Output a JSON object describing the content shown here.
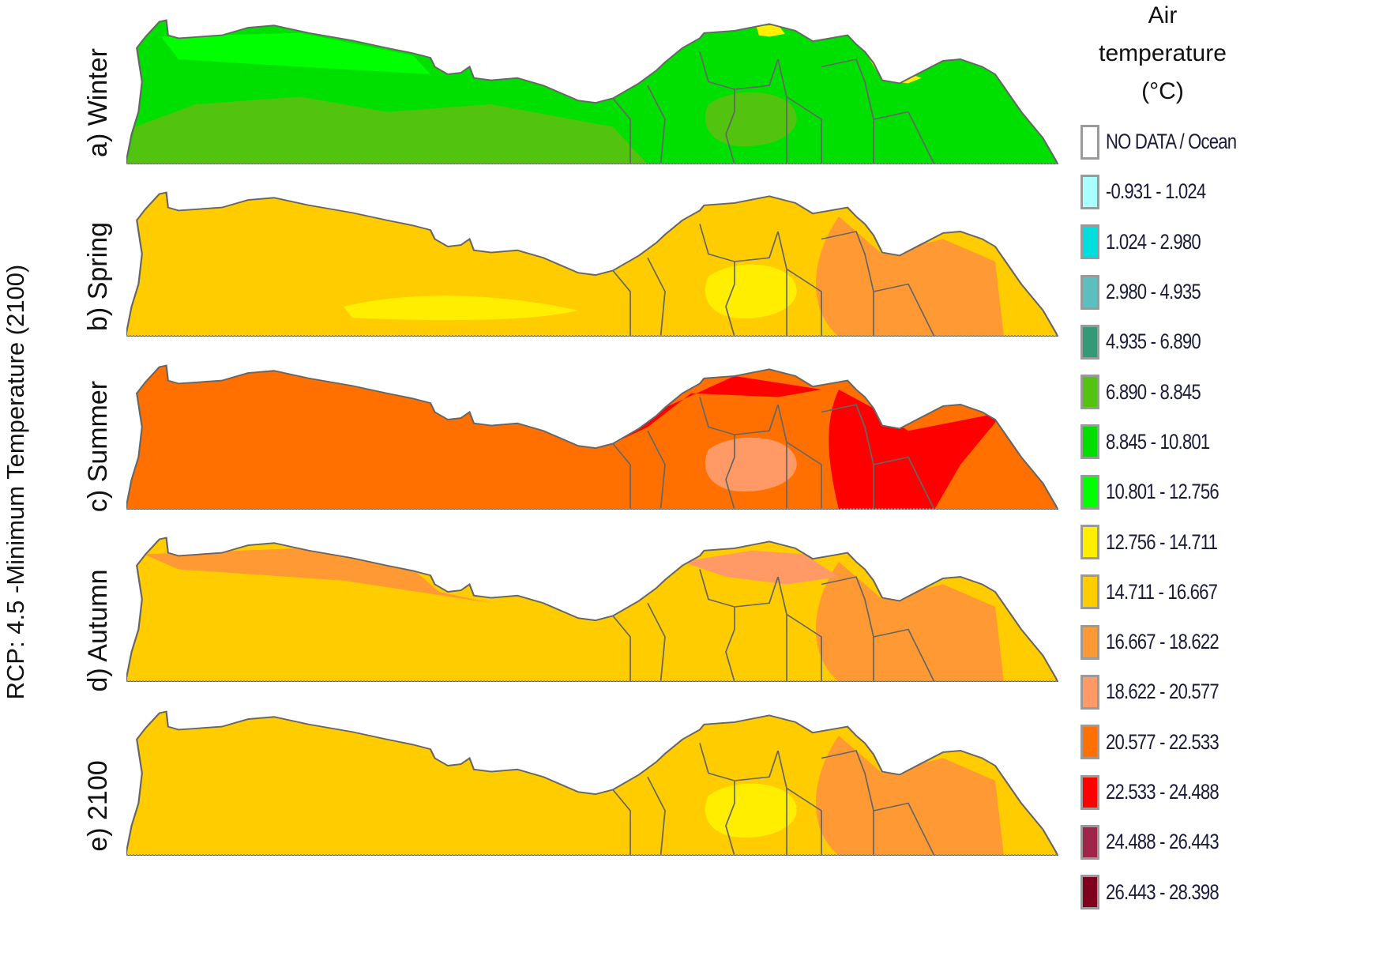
{
  "figure": {
    "main_title": "RCP: 4.5 -Minimum Temperature (2100)",
    "panels": [
      {
        "label": "a) Winter",
        "base_color": "#00e000",
        "zones": [
          {
            "color": "#52c410",
            "shape": "southwest"
          },
          {
            "color": "#00ff00",
            "shape": "northcoast"
          },
          {
            "color": "#52c410",
            "shape": "center"
          },
          {
            "color": "#ffee00",
            "shape": "delta-east"
          },
          {
            "color": "#ffee00",
            "shape": "delta-north"
          }
        ]
      },
      {
        "label": "b) Spring",
        "base_color": "#ffcc00",
        "zones": [
          {
            "color": "#ffee00",
            "shape": "southwest-streak"
          },
          {
            "color": "#ffee00",
            "shape": "center"
          },
          {
            "color": "#ff9933",
            "shape": "east"
          }
        ]
      },
      {
        "label": "c) Summer",
        "base_color": "#ff7000",
        "zones": [
          {
            "color": "#ff0000",
            "shape": "northcoast-center"
          },
          {
            "color": "#ff0000",
            "shape": "east-block"
          },
          {
            "color": "#ff9966",
            "shape": "center"
          },
          {
            "color": "#a0254a",
            "shape": "dot"
          }
        ]
      },
      {
        "label": "d) Autumn",
        "base_color": "#ffcc00",
        "zones": [
          {
            "color": "#ff9933",
            "shape": "northwest-coast"
          },
          {
            "color": "#ff9933",
            "shape": "east"
          },
          {
            "color": "#ff9966",
            "shape": "center-north"
          }
        ]
      },
      {
        "label": "e) 2100",
        "base_color": "#ffcc00",
        "zones": [
          {
            "color": "#ff9933",
            "shape": "east"
          },
          {
            "color": "#ffee00",
            "shape": "center"
          }
        ]
      }
    ]
  },
  "legend": {
    "title_lines": [
      "Air",
      "temperature",
      "(°C)"
    ],
    "items": [
      {
        "label": "NO DATA / Ocean",
        "color": "#ffffff"
      },
      {
        "label": "-0.931  -  1.024",
        "color": "#aaffff"
      },
      {
        "label": "1.024  -  2.980",
        "color": "#00dddd"
      },
      {
        "label": "2.980  -  4.935",
        "color": "#5cbfbf"
      },
      {
        "label": "4.935  -  6.890",
        "color": "#339977"
      },
      {
        "label": "6.890  -  8.845",
        "color": "#52c410"
      },
      {
        "label": "8.845  -  10.801",
        "color": "#00dd00"
      },
      {
        "label": "10.801  -  12.756",
        "color": "#00ff00"
      },
      {
        "label": "12.756  -  14.711",
        "color": "#ffee00"
      },
      {
        "label": "14.711  -  16.667",
        "color": "#ffcc00"
      },
      {
        "label": "16.667  -  18.622",
        "color": "#ff9933"
      },
      {
        "label": "18.622  -  20.577",
        "color": "#ff9966"
      },
      {
        "label": "20.577  -  22.533",
        "color": "#ff7000"
      },
      {
        "label": "22.533  -  24.488",
        "color": "#ff0000"
      },
      {
        "label": "24.488  -  26.443",
        "color": "#a0254a"
      },
      {
        "label": "26.443  -  28.398",
        "color": "#800020"
      }
    ]
  }
}
